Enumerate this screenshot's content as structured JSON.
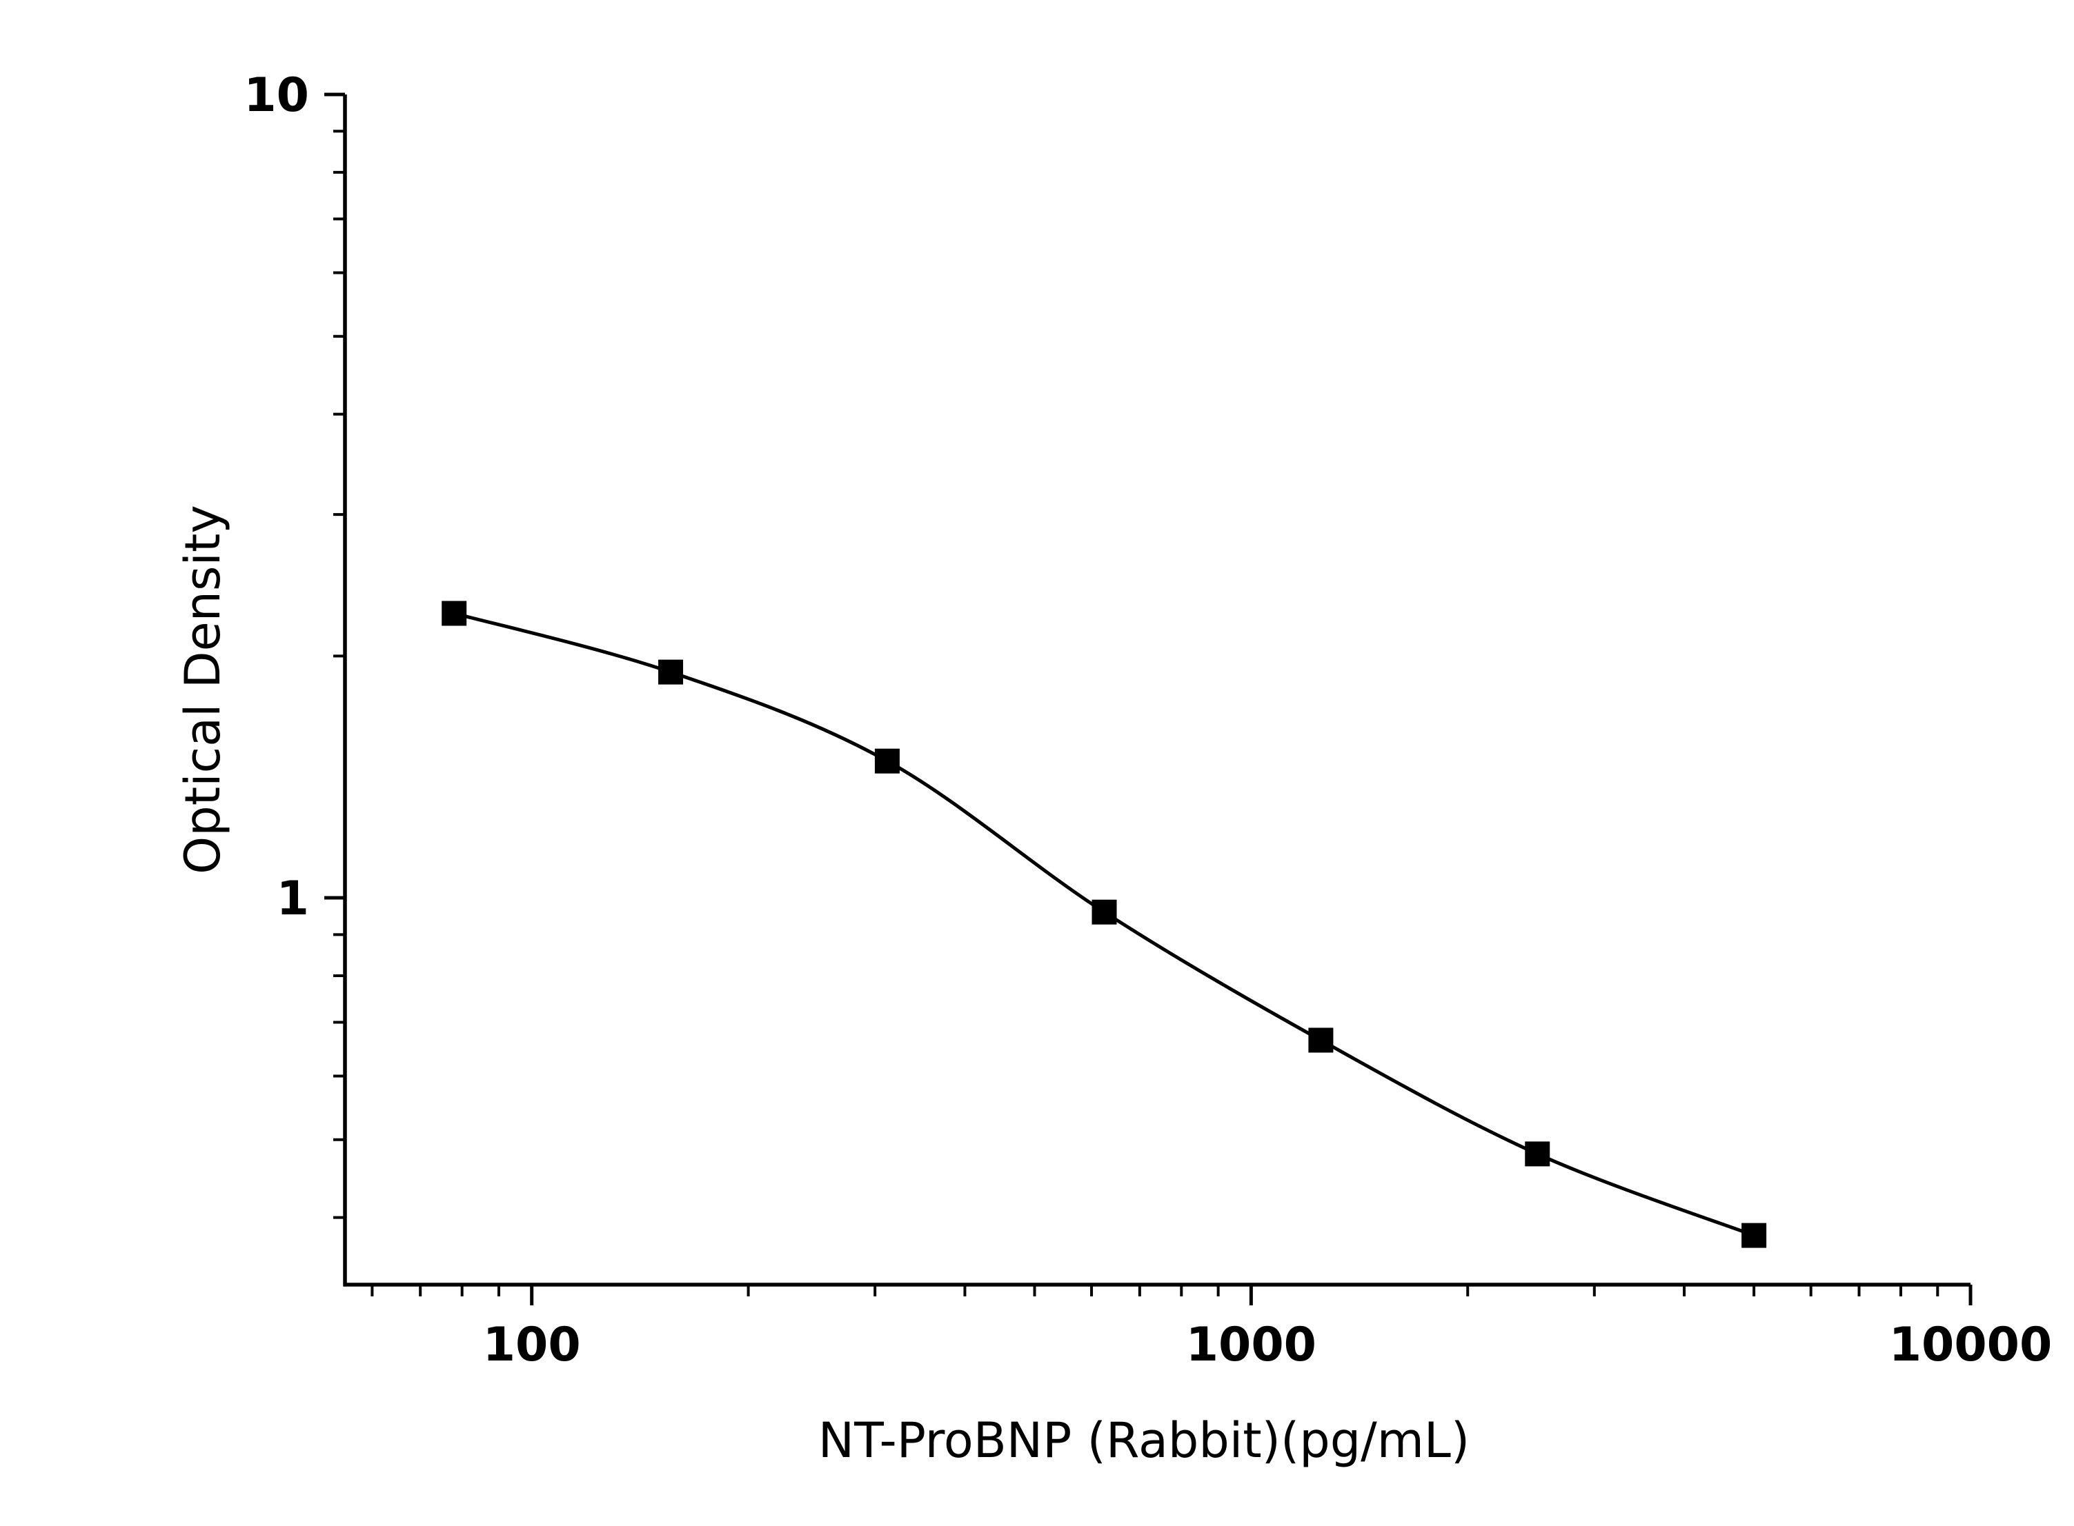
{
  "chart_data": {
    "type": "scatter",
    "title": "",
    "xlabel": "NT-ProBNP (Rabbit)(pg/mL)",
    "ylabel": "Optical Density",
    "x_scale": "log",
    "y_scale": "log",
    "xlim": [
      55,
      10000
    ],
    "ylim": [
      0.33,
      10
    ],
    "x_ticks": [
      {
        "value": 100,
        "label": "100"
      },
      {
        "value": 1000,
        "label": "1000"
      },
      {
        "value": 10000,
        "label": "10000"
      }
    ],
    "y_ticks": [
      {
        "value": 1,
        "label": "1"
      },
      {
        "value": 10,
        "label": "10"
      }
    ],
    "grid": false,
    "legend": "none",
    "series": [
      {
        "marker": "square",
        "color": "#000000",
        "fit_curve": true,
        "x": [
          78,
          156,
          312,
          625,
          1250,
          2500,
          5000
        ],
        "y": [
          2.26,
          1.91,
          1.48,
          0.96,
          0.665,
          0.48,
          0.38
        ]
      }
    ]
  }
}
